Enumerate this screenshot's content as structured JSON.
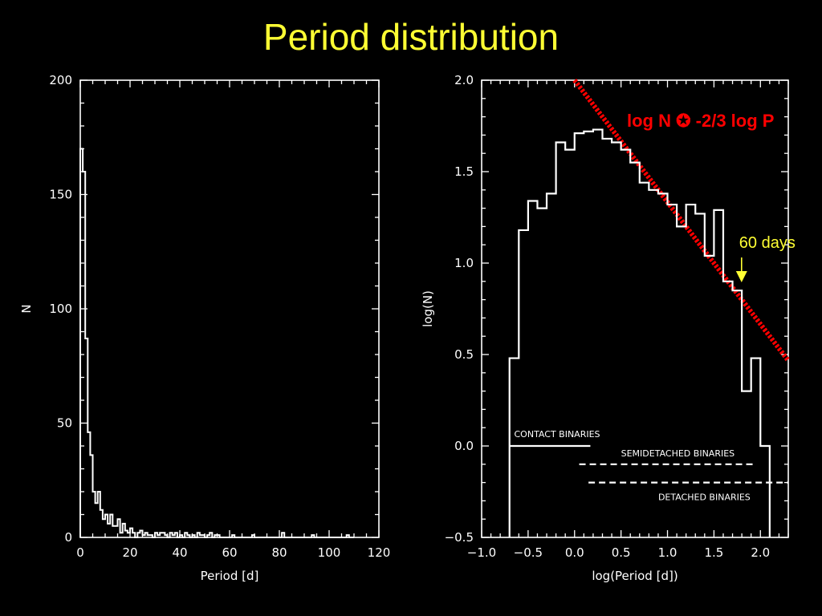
{
  "page": {
    "title": "Period distribution",
    "colors": {
      "background": "#000000",
      "title": "#ffff33",
      "axes": "#ffffff",
      "fit": "#ff0000",
      "marker": "#ffff33"
    }
  },
  "chart_data": [
    {
      "type": "histogram",
      "xlabel": "Period [d]",
      "ylabel": "N",
      "xlim": [
        0,
        120
      ],
      "ylim": [
        0,
        200
      ],
      "xticks": [
        0,
        20,
        40,
        60,
        80,
        100,
        120
      ],
      "yticks": [
        0,
        50,
        100,
        150,
        200
      ],
      "bin_width": 1,
      "series": [
        {
          "edges": [
            0,
            1,
            2,
            3,
            4,
            5,
            6,
            7,
            8,
            9,
            10,
            11,
            12,
            13,
            14,
            15,
            16,
            17,
            18,
            19,
            20,
            21,
            22,
            23,
            24,
            25,
            26,
            27,
            28,
            29,
            30,
            31,
            32,
            33,
            34,
            35,
            36,
            37,
            38,
            39,
            40,
            41,
            42,
            43,
            44,
            45,
            46,
            47,
            48,
            49,
            50,
            51,
            52,
            53,
            54,
            55,
            56,
            57,
            58,
            59,
            60,
            61,
            62,
            63,
            64,
            65,
            66,
            67,
            68,
            69,
            70,
            71,
            72,
            73,
            74,
            75,
            76,
            77,
            78,
            79,
            80,
            81,
            82,
            83,
            84,
            85,
            86,
            87,
            88,
            89,
            90,
            91,
            92,
            93,
            94,
            95,
            96,
            97,
            98,
            99,
            100,
            101,
            102,
            103,
            104,
            105,
            106,
            107,
            108,
            109,
            110
          ],
          "counts": [
            170,
            160,
            87,
            46,
            36,
            20,
            15,
            20,
            12,
            8,
            10,
            6,
            10,
            5,
            5,
            8,
            2,
            6,
            3,
            2,
            4,
            2,
            0,
            2,
            3,
            1,
            2,
            1,
            1,
            0,
            2,
            1,
            2,
            2,
            1,
            0,
            2,
            1,
            2,
            0,
            1,
            0,
            2,
            1,
            0,
            1,
            0,
            2,
            1,
            1,
            0,
            1,
            2,
            0,
            1,
            1,
            0,
            0,
            0,
            0,
            0,
            1,
            0,
            0,
            0,
            0,
            0,
            0,
            0,
            1,
            0,
            0,
            0,
            0,
            0,
            0,
            0,
            0,
            0,
            0,
            0,
            2,
            0,
            0,
            0,
            0,
            0,
            0,
            0,
            0,
            0,
            0,
            0,
            1,
            0,
            0,
            0,
            0,
            0,
            0,
            0,
            0,
            0,
            0,
            0,
            0,
            0,
            1,
            0,
            0
          ]
        }
      ]
    },
    {
      "type": "histogram",
      "xlabel": "log(Period [d])",
      "ylabel": "log(N)",
      "xlim": [
        -1.0,
        2.3
      ],
      "ylim": [
        -0.5,
        2.0
      ],
      "xticks": [
        -1.0,
        -0.5,
        0.0,
        0.5,
        1.0,
        1.5,
        2.0
      ],
      "xtick_labels": [
        "−1.0",
        "−0.5",
        "0.0",
        "0.5",
        "1.0",
        "1.5",
        "2.0"
      ],
      "yticks": [
        -0.5,
        0.0,
        0.5,
        1.0,
        1.5,
        2.0
      ],
      "ytick_labels": [
        "−0.5",
        "0.0",
        "0.5",
        "1.0",
        "1.5",
        "2.0"
      ],
      "series": [
        {
          "edges": [
            -0.7,
            -0.6,
            -0.5,
            -0.4,
            -0.3,
            -0.2,
            -0.1,
            0.0,
            0.1,
            0.2,
            0.3,
            0.4,
            0.5,
            0.6,
            0.7,
            0.8,
            0.9,
            1.0,
            1.1,
            1.2,
            1.3,
            1.4,
            1.5,
            1.6,
            1.7,
            1.8,
            1.9,
            2.0,
            2.1
          ],
          "values": [
            0.48,
            1.18,
            1.34,
            1.3,
            1.38,
            1.66,
            1.62,
            1.71,
            1.72,
            1.73,
            1.68,
            1.66,
            1.62,
            1.55,
            1.44,
            1.4,
            1.38,
            1.32,
            1.2,
            1.32,
            1.27,
            1.04,
            1.29,
            0.9,
            0.85,
            0.3,
            0.48,
            0.0
          ]
        }
      ],
      "fit": {
        "label": "log N ✪ -2/3 log P",
        "slope": -0.6667,
        "x_range": [
          0.0,
          2.3
        ],
        "y_at_x0": 2.0
      },
      "marker": {
        "label": "60 days",
        "x": 1.78,
        "y_arrow_tip": 0.92
      },
      "ranges": [
        {
          "label": "CONTACT BINARIES",
          "x": [
            -0.7,
            0.17
          ],
          "y": 0.0,
          "style": "solid"
        },
        {
          "label": "SEMIDETACHED BINARIES",
          "x": [
            0.05,
            1.95
          ],
          "y": -0.1,
          "style": "dashed"
        },
        {
          "label": "DETACHED BINARIES",
          "x": [
            0.15,
            2.3
          ],
          "y": -0.2,
          "style": "dashed"
        }
      ]
    }
  ]
}
